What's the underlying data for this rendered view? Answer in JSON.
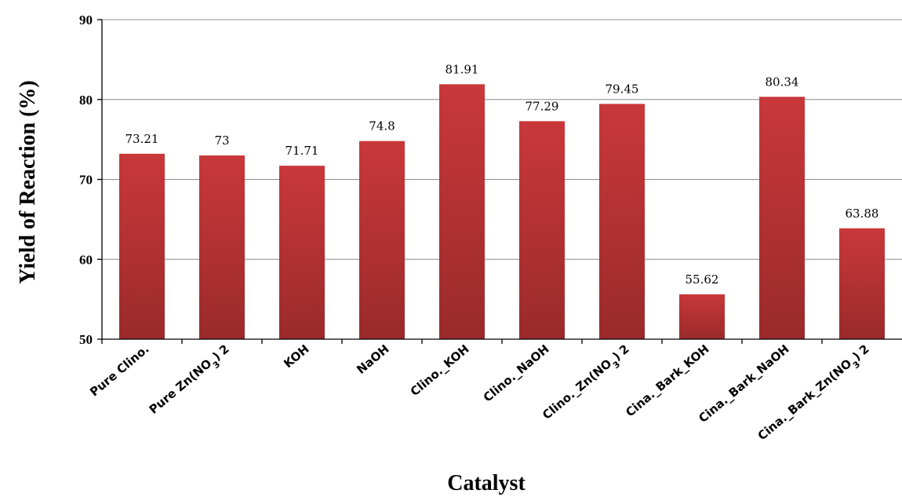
{
  "chart_data": {
    "type": "bar",
    "categories": [
      {
        "label": "Pure Clino.",
        "sub": ""
      },
      {
        "label": "Pure Zn(NO",
        "sub": "3",
        "post": ")",
        "sup": "2"
      },
      {
        "label": "KOH",
        "sub": ""
      },
      {
        "label": "NaOH",
        "sub": ""
      },
      {
        "label": "Clino._KOH",
        "sub": ""
      },
      {
        "label": "Clino._NaOH",
        "sub": ""
      },
      {
        "label": "Clino._Zn(NO",
        "sub": "3",
        "post": ")",
        "sup": "2"
      },
      {
        "label": "Cina._Bark_KOH",
        "sub": ""
      },
      {
        "label": "Cina._Bark_NaOH",
        "sub": ""
      },
      {
        "label": "Cina._Bark_Zn(NO",
        "sub": "3",
        "post": ")",
        "sup": "2"
      }
    ],
    "values": [
      73.21,
      73,
      71.71,
      74.8,
      81.91,
      77.29,
      79.45,
      55.62,
      80.34,
      63.88
    ],
    "data_labels": [
      "73.21",
      "73",
      "71.71",
      "74.8",
      "81.91",
      "77.29",
      "79.45",
      "55.62",
      "80.34",
      "63.88"
    ],
    "xlabel": "Catalyst",
    "ylabel": "Yield of Reaction (%)",
    "ylim": [
      50,
      90
    ],
    "yticks": [
      50,
      60,
      70,
      80,
      90
    ],
    "bar_color": "#c9383a",
    "bar_color_dark": "#9a2a2b",
    "grid": true,
    "legend": "none"
  }
}
